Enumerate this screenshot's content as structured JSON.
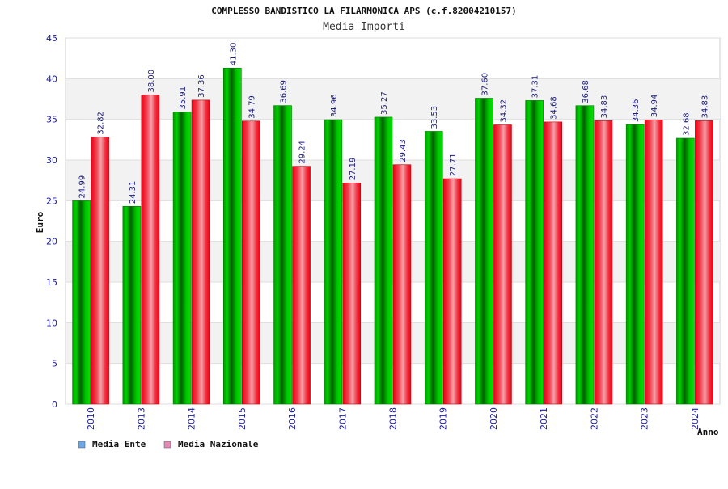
{
  "chart_data": {
    "type": "bar",
    "title": "COMPLESSO BANDISTICO LA FILARMONICA APS (c.f.82004210157)",
    "subtitle": "Media Importi",
    "xlabel": "Anno",
    "ylabel": "Euro",
    "ylim": [
      0,
      45
    ],
    "yticks": [
      0,
      5,
      10,
      15,
      20,
      25,
      30,
      35,
      40,
      45
    ],
    "grid": true,
    "legend_position": "bottom-left",
    "categories": [
      "2010",
      "2013",
      "2014",
      "2015",
      "2016",
      "2017",
      "2018",
      "2019",
      "2020",
      "2021",
      "2022",
      "2023",
      "2024"
    ],
    "series": [
      {
        "name": "Media Ente",
        "values": [
          24.99,
          24.31,
          35.91,
          41.3,
          36.69,
          34.96,
          35.27,
          33.53,
          37.6,
          37.31,
          36.68,
          34.36,
          32.68
        ],
        "labels": [
          "24.99",
          "24.31",
          "35.91",
          "41.30",
          "36.69",
          "34.96",
          "35.27",
          "33.53",
          "37.60",
          "37.31",
          "36.68",
          "34.36",
          "32.68"
        ],
        "color": "#00b800",
        "legend_color": "#6aa6e8"
      },
      {
        "name": "Media Nazionale",
        "values": [
          32.82,
          38.0,
          37.36,
          34.79,
          29.24,
          27.19,
          29.43,
          27.71,
          34.32,
          34.68,
          34.83,
          34.94,
          34.83
        ],
        "labels": [
          "32.82",
          "38.00",
          "37.36",
          "34.79",
          "29.24",
          "27.19",
          "29.43",
          "27.71",
          "34.32",
          "34.68",
          "34.83",
          "34.94",
          "34.83"
        ],
        "color": "#f01020",
        "legend_color": "#e58ab8"
      }
    ]
  }
}
